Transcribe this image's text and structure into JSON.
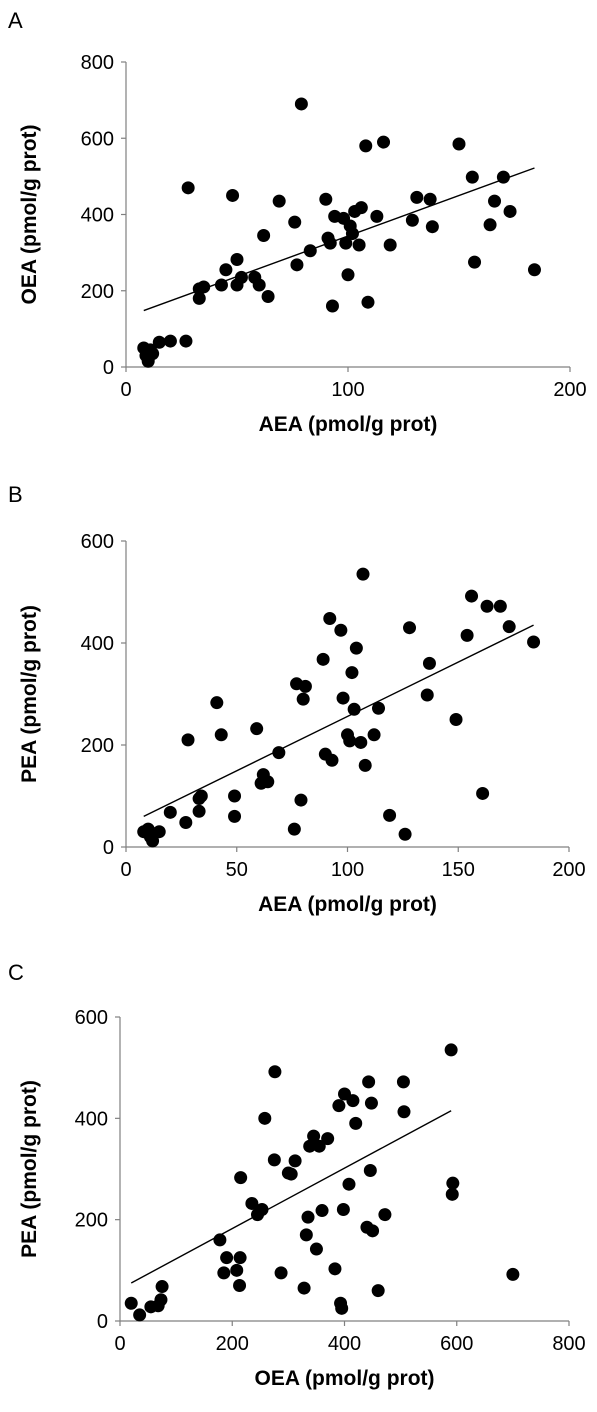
{
  "chart_data": [
    {
      "panel_label": "A",
      "type": "scatter",
      "xlabel": "AEA (pmol/g prot)",
      "ylabel": "OEA (pmol/g prot)",
      "xlim": [
        0,
        200
      ],
      "ylim": [
        0,
        800
      ],
      "xticks": [
        0,
        100,
        200
      ],
      "yticks": [
        0,
        200,
        400,
        600,
        800
      ],
      "trendline": {
        "x": [
          8,
          184
        ],
        "y": [
          148,
          522
        ]
      },
      "points": [
        [
          8,
          50
        ],
        [
          9,
          30
        ],
        [
          10,
          15
        ],
        [
          10,
          20
        ],
        [
          11,
          45
        ],
        [
          12,
          35
        ],
        [
          15,
          65
        ],
        [
          20,
          68
        ],
        [
          27,
          68
        ],
        [
          28,
          470
        ],
        [
          33,
          180
        ],
        [
          33,
          205
        ],
        [
          35,
          210
        ],
        [
          43,
          215
        ],
        [
          45,
          255
        ],
        [
          48,
          450
        ],
        [
          50,
          215
        ],
        [
          50,
          282
        ],
        [
          52,
          235
        ],
        [
          58,
          235
        ],
        [
          60,
          215
        ],
        [
          62,
          345
        ],
        [
          64,
          185
        ],
        [
          69,
          435
        ],
        [
          76,
          380
        ],
        [
          77,
          268
        ],
        [
          79,
          690
        ],
        [
          83,
          305
        ],
        [
          90,
          440
        ],
        [
          91,
          338
        ],
        [
          92,
          325
        ],
        [
          93,
          160
        ],
        [
          94,
          395
        ],
        [
          98,
          390
        ],
        [
          99,
          325
        ],
        [
          100,
          242
        ],
        [
          101,
          370
        ],
        [
          102,
          350
        ],
        [
          103,
          408
        ],
        [
          105,
          320
        ],
        [
          106,
          418
        ],
        [
          108,
          580
        ],
        [
          109,
          170
        ],
        [
          113,
          395
        ],
        [
          116,
          590
        ],
        [
          119,
          320
        ],
        [
          129,
          385
        ],
        [
          131,
          445
        ],
        [
          137,
          440
        ],
        [
          138,
          368
        ],
        [
          150,
          585
        ],
        [
          156,
          498
        ],
        [
          157,
          275
        ],
        [
          164,
          373
        ],
        [
          166,
          435
        ],
        [
          170,
          498
        ],
        [
          173,
          408
        ],
        [
          184,
          255
        ]
      ]
    },
    {
      "panel_label": "B",
      "type": "scatter",
      "xlabel": "AEA (pmol/g prot)",
      "ylabel": "PEA (pmol/g prot)",
      "xlim": [
        0,
        200
      ],
      "ylim": [
        0,
        600
      ],
      "xticks": [
        0,
        50,
        100,
        150,
        200
      ],
      "yticks": [
        0,
        200,
        400,
        600
      ],
      "trendline": {
        "x": [
          8,
          184
        ],
        "y": [
          60,
          435
        ]
      },
      "points": [
        [
          8,
          30
        ],
        [
          10,
          35
        ],
        [
          11,
          20
        ],
        [
          12,
          12
        ],
        [
          15,
          30
        ],
        [
          20,
          68
        ],
        [
          27,
          48
        ],
        [
          28,
          210
        ],
        [
          33,
          95
        ],
        [
          33,
          70
        ],
        [
          34,
          100
        ],
        [
          41,
          283
        ],
        [
          43,
          220
        ],
        [
          49,
          60
        ],
        [
          49,
          100
        ],
        [
          59,
          232
        ],
        [
          61,
          125
        ],
        [
          62,
          142
        ],
        [
          64,
          128
        ],
        [
          69,
          185
        ],
        [
          76,
          35
        ],
        [
          77,
          320
        ],
        [
          79,
          92
        ],
        [
          80,
          290
        ],
        [
          81,
          315
        ],
        [
          89,
          368
        ],
        [
          90,
          182
        ],
        [
          92,
          448
        ],
        [
          93,
          170
        ],
        [
          97,
          425
        ],
        [
          98,
          292
        ],
        [
          100,
          220
        ],
        [
          101,
          208
        ],
        [
          102,
          342
        ],
        [
          103,
          270
        ],
        [
          104,
          390
        ],
        [
          106,
          205
        ],
        [
          107,
          535
        ],
        [
          108,
          160
        ],
        [
          112,
          220
        ],
        [
          114,
          272
        ],
        [
          119,
          62
        ],
        [
          126,
          25
        ],
        [
          128,
          430
        ],
        [
          136,
          298
        ],
        [
          137,
          360
        ],
        [
          149,
          250
        ],
        [
          154,
          415
        ],
        [
          156,
          492
        ],
        [
          161,
          105
        ],
        [
          163,
          472
        ],
        [
          169,
          472
        ],
        [
          173,
          432
        ],
        [
          184,
          402
        ]
      ]
    },
    {
      "panel_label": "C",
      "type": "scatter",
      "xlabel": "OEA (pmol/g prot)",
      "ylabel": "PEA (pmol/g prot)",
      "xlim": [
        0,
        800
      ],
      "ylim": [
        0,
        600
      ],
      "xticks": [
        0,
        200,
        400,
        600,
        800
      ],
      "yticks": [
        0,
        200,
        400,
        600
      ],
      "trendline": {
        "x": [
          20,
          590
        ],
        "y": [
          75,
          415
        ]
      },
      "points": [
        [
          20,
          35
        ],
        [
          35,
          12
        ],
        [
          55,
          28
        ],
        [
          68,
          30
        ],
        [
          73,
          42
        ],
        [
          75,
          68
        ],
        [
          178,
          160
        ],
        [
          185,
          95
        ],
        [
          190,
          125
        ],
        [
          208,
          100
        ],
        [
          213,
          70
        ],
        [
          214,
          125
        ],
        [
          215,
          283
        ],
        [
          235,
          232
        ],
        [
          245,
          210
        ],
        [
          253,
          220
        ],
        [
          258,
          400
        ],
        [
          275,
          318
        ],
        [
          276,
          492
        ],
        [
          287,
          95
        ],
        [
          300,
          292
        ],
        [
          305,
          290
        ],
        [
          312,
          316
        ],
        [
          328,
          65
        ],
        [
          332,
          170
        ],
        [
          335,
          205
        ],
        [
          338,
          345
        ],
        [
          345,
          365
        ],
        [
          350,
          142
        ],
        [
          355,
          345
        ],
        [
          360,
          218
        ],
        [
          370,
          360
        ],
        [
          383,
          103
        ],
        [
          390,
          425
        ],
        [
          393,
          35
        ],
        [
          395,
          25
        ],
        [
          398,
          220
        ],
        [
          400,
          448
        ],
        [
          408,
          270
        ],
        [
          415,
          435
        ],
        [
          420,
          390
        ],
        [
          440,
          185
        ],
        [
          443,
          472
        ],
        [
          446,
          297
        ],
        [
          448,
          430
        ],
        [
          450,
          178
        ],
        [
          460,
          60
        ],
        [
          472,
          210
        ],
        [
          505,
          472
        ],
        [
          506,
          413
        ],
        [
          590,
          535
        ],
        [
          592,
          250
        ],
        [
          593,
          272
        ],
        [
          700,
          92
        ]
      ]
    }
  ]
}
